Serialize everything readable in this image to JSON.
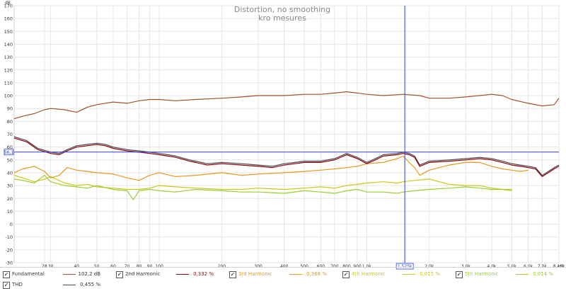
{
  "chart_data": {
    "type": "line",
    "title": "Distortion, no smoothing",
    "subtitle": "kro mesures",
    "ylabel": "dB",
    "xunit": "Hz",
    "xscale": "log",
    "xlim": [
      20,
      8430
    ],
    "ylim": [
      -30,
      170
    ],
    "grid": true,
    "y_ticks": [
      170,
      160,
      150,
      140,
      130,
      120,
      110,
      100,
      90,
      80,
      70,
      60,
      50,
      40,
      30,
      20,
      10,
      0,
      -10,
      -20,
      -30
    ],
    "x_ticks": [
      {
        "v": 28,
        "label": "28"
      },
      {
        "v": 30,
        "label": "30"
      },
      {
        "v": 40,
        "label": "40"
      },
      {
        "v": 50,
        "label": "50"
      },
      {
        "v": 60,
        "label": "60"
      },
      {
        "v": 70,
        "label": "70"
      },
      {
        "v": 80,
        "label": "80"
      },
      {
        "v": 90,
        "label": "90"
      },
      {
        "v": 100,
        "label": "100"
      },
      {
        "v": 200,
        "label": "200"
      },
      {
        "v": 300,
        "label": "300"
      },
      {
        "v": 400,
        "label": "400"
      },
      {
        "v": 500,
        "label": "500"
      },
      {
        "v": 600,
        "label": "600"
      },
      {
        "v": 700,
        "label": "700"
      },
      {
        "v": 800,
        "label": "800"
      },
      {
        "v": 900,
        "label": "900"
      },
      {
        "v": 1000,
        "label": "1,0k"
      },
      {
        "v": 2000,
        "label": "2,0k"
      },
      {
        "v": 3000,
        "label": "3,0k"
      },
      {
        "v": 4000,
        "label": "4,0k"
      },
      {
        "v": 5000,
        "label": "5,0k"
      },
      {
        "v": 6000,
        "label": "6,0k"
      },
      {
        "v": 7000,
        "label": "7,0k"
      },
      {
        "v": 8430,
        "label": "8,43k"
      }
    ],
    "cursor": {
      "x": 1525,
      "x_label": "1,525k",
      "y": 56.1,
      "y_label": "56,1"
    },
    "series": [
      {
        "name": "Fundamental",
        "color": "#a0522d",
        "value_label": "102,2 dB",
        "x": [
          20,
          22,
          25,
          28,
          30,
          35,
          40,
          45,
          50,
          60,
          70,
          80,
          90,
          100,
          120,
          150,
          200,
          250,
          300,
          400,
          500,
          600,
          700,
          800,
          900,
          1000,
          1200,
          1500,
          1800,
          2000,
          2500,
          3000,
          3500,
          4000,
          4500,
          5000,
          6000,
          7000,
          8000,
          8430
        ],
        "y": [
          82,
          84,
          86,
          89,
          90,
          89,
          87,
          91,
          93,
          95,
          94,
          96,
          97,
          97,
          96,
          97,
          98,
          99,
          100,
          100,
          101,
          101,
          102,
          103,
          102,
          101,
          100,
          101,
          100,
          98,
          98,
          99,
          100,
          101,
          100,
          97,
          94,
          92,
          93,
          98
        ]
      },
      {
        "name": "2nd Harmonic",
        "color": "#8b0000",
        "value_label": "0,332 %",
        "x": [
          20,
          23,
          26,
          30,
          33,
          36,
          40,
          45,
          50,
          55,
          60,
          70,
          80,
          90,
          100,
          110,
          120,
          140,
          150,
          170,
          200,
          250,
          300,
          350,
          400,
          450,
          500,
          600,
          700,
          800,
          900,
          1000,
          1100,
          1200,
          1400,
          1500,
          1600,
          1700,
          1800,
          2000,
          2500,
          3000,
          3500,
          4000,
          4500,
          5000,
          5500,
          6000,
          6500,
          7000,
          7500,
          8000,
          8430
        ],
        "y": [
          67,
          64,
          58,
          55,
          54,
          57,
          60,
          61,
          62,
          61,
          59,
          57,
          56,
          55,
          54,
          53,
          52,
          49,
          48,
          46,
          47,
          46,
          45,
          44,
          46,
          47,
          48,
          48,
          50,
          54,
          51,
          47,
          50,
          53,
          54,
          55,
          54,
          52,
          45,
          48,
          49,
          50,
          51,
          50,
          48,
          46,
          45,
          44,
          43,
          37,
          40,
          43,
          45
        ]
      },
      {
        "name": "3rd Harmonic",
        "color": "#e39a1e",
        "value_label": "0,368 %",
        "x": [
          20,
          22,
          25,
          28,
          30,
          33,
          36,
          40,
          45,
          50,
          60,
          70,
          80,
          90,
          100,
          120,
          150,
          200,
          250,
          300,
          400,
          500,
          600,
          700,
          800,
          900,
          1000,
          1200,
          1400,
          1500,
          1600,
          1700,
          1800,
          2000,
          2500,
          3000,
          3500,
          4000,
          4500,
          5000,
          5500,
          6000
        ],
        "y": [
          40,
          43,
          45,
          41,
          36,
          38,
          44,
          42,
          41,
          40,
          39,
          36,
          34,
          38,
          40,
          37,
          38,
          40,
          38,
          39,
          40,
          41,
          42,
          43,
          44,
          45,
          47,
          48,
          51,
          53,
          48,
          44,
          38,
          42,
          46,
          48,
          48,
          45,
          43,
          42,
          41,
          42
        ]
      },
      {
        "name": "4th Harmonic",
        "color": "#c5c81a",
        "value_label": "0,015 %",
        "x": [
          20,
          22,
          25,
          28,
          30,
          35,
          40,
          45,
          50,
          60,
          70,
          80,
          90,
          100,
          120,
          150,
          200,
          250,
          300,
          400,
          500,
          600,
          700,
          800,
          900,
          1000,
          1200,
          1400,
          1500,
          1700,
          2000,
          2500,
          3000,
          3500,
          4000,
          4500,
          5000
        ],
        "y": [
          38,
          36,
          33,
          35,
          37,
          32,
          30,
          31,
          29,
          28,
          27,
          27,
          28,
          30,
          29,
          28,
          27,
          27,
          28,
          27,
          28,
          29,
          28,
          30,
          31,
          32,
          33,
          32,
          33,
          34,
          35,
          31,
          30,
          30,
          28,
          27,
          26
        ]
      },
      {
        "name": "5th Harmonic",
        "color": "#9acd32",
        "value_label": "0,014 %",
        "x": [
          20,
          22,
          25,
          28,
          30,
          35,
          40,
          45,
          50,
          60,
          70,
          75,
          80,
          90,
          100,
          120,
          150,
          200,
          250,
          300,
          400,
          500,
          600,
          700,
          800,
          900,
          1000,
          1200,
          1400,
          1500,
          1700,
          2000,
          2500,
          3000,
          3500,
          4000,
          4500,
          5000
        ],
        "y": [
          35,
          34,
          32,
          38,
          33,
          30,
          29,
          28,
          30,
          27,
          26,
          19,
          26,
          27,
          26,
          25,
          27,
          26,
          25,
          25,
          24,
          26,
          25,
          24,
          26,
          27,
          25,
          25,
          24,
          25,
          26,
          27,
          28,
          29,
          28,
          27,
          27,
          27
        ]
      },
      {
        "name": "THD",
        "color": "#4a4a5a",
        "value_label": "0,455 %",
        "x": [
          20,
          23,
          26,
          30,
          33,
          36,
          40,
          45,
          50,
          55,
          60,
          70,
          80,
          90,
          100,
          110,
          120,
          140,
          150,
          170,
          200,
          250,
          300,
          350,
          400,
          450,
          500,
          600,
          700,
          800,
          900,
          1000,
          1100,
          1200,
          1400,
          1500,
          1600,
          1700,
          1800,
          2000,
          2500,
          3000,
          3500,
          4000,
          4500,
          5000,
          5500,
          6000,
          6500,
          7000,
          7500,
          8000,
          8430
        ],
        "y": [
          68,
          65,
          59,
          56,
          55,
          58,
          61,
          62,
          63,
          62,
          60,
          58,
          57,
          56,
          55,
          54,
          53,
          50,
          49,
          47,
          48,
          47,
          46,
          45,
          47,
          48,
          49,
          49,
          51,
          55,
          52,
          48,
          51,
          54,
          55,
          56,
          55,
          53,
          46,
          49,
          50,
          51,
          52,
          51,
          49,
          47,
          46,
          45,
          44,
          38,
          41,
          44,
          46
        ]
      }
    ]
  }
}
